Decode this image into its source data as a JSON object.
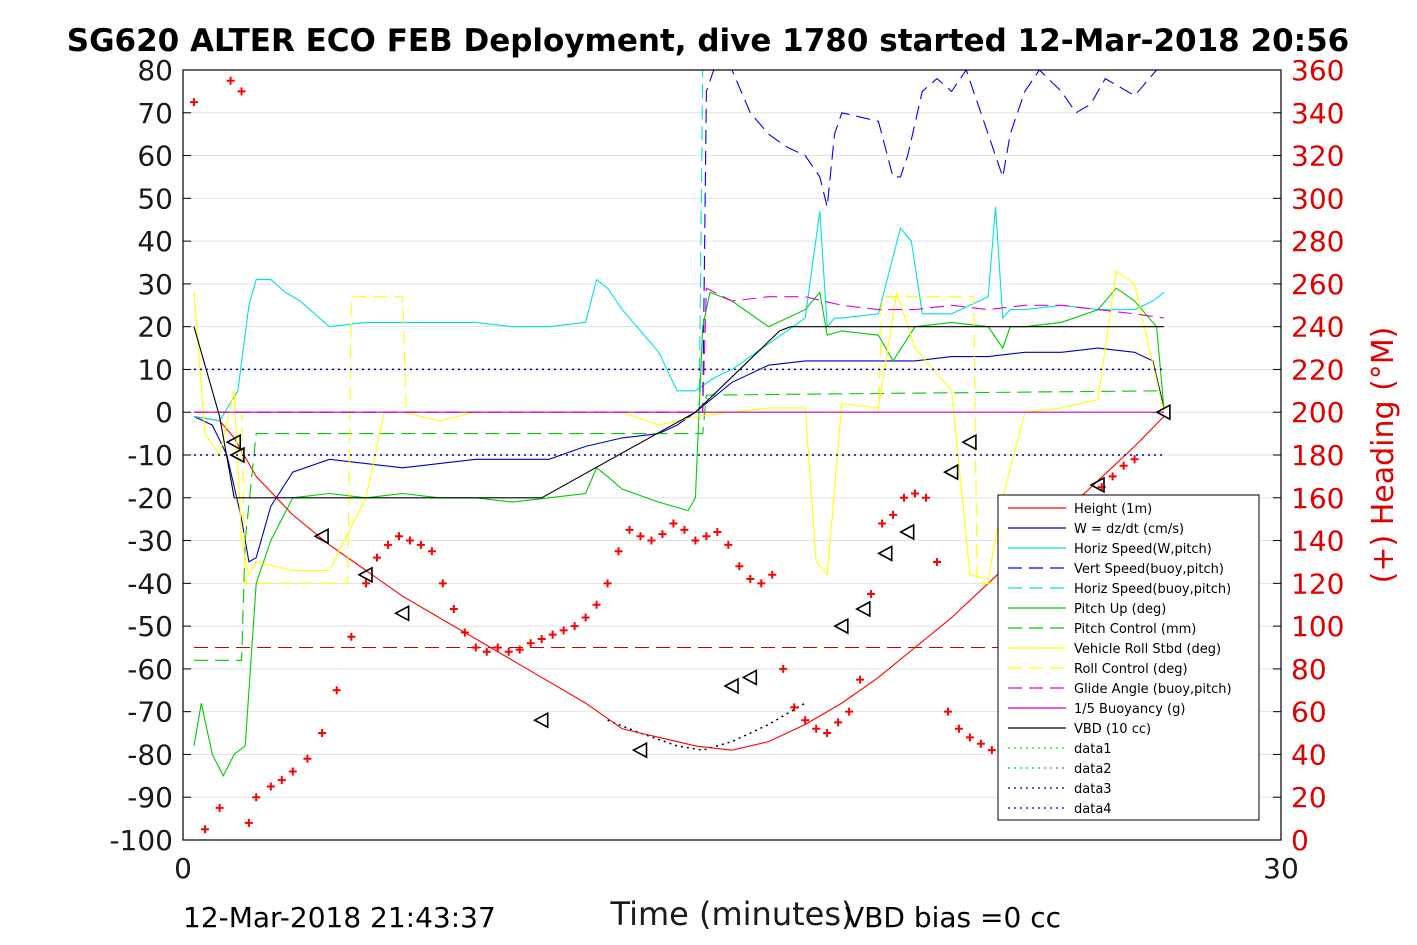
{
  "chart_data": {
    "type": "line",
    "title": "SG620 ALTER ECO FEB Deployment, dive 1780 started 12-Mar-2018 20:56",
    "xlabel": "Time (minutes)",
    "ylabel": "",
    "ylabel_right": "(+) Heading (°M)",
    "xlim": [
      0,
      30
    ],
    "ylim": [
      -100,
      80
    ],
    "ylim_right": [
      0,
      360
    ],
    "x_ticks": [
      "0",
      "30"
    ],
    "y_ticks": [
      "80",
      "70",
      "60",
      "50",
      "40",
      "30",
      "20",
      "10",
      "0",
      "-10",
      "-20",
      "-30",
      "-40",
      "-50",
      "-60",
      "-70",
      "-80",
      "-90",
      "-100"
    ],
    "y_right_ticks": [
      "360",
      "340",
      "320",
      "300",
      "280",
      "260",
      "240",
      "220",
      "200",
      "180",
      "160",
      "140",
      "120",
      "100",
      "80",
      "60",
      "40",
      "20",
      "0"
    ],
    "grid": true,
    "legend_position": "lower-right",
    "footer_left": "12-Mar-2018 21:43:37",
    "footer_right": "VBD bias =0 cc",
    "colors": {
      "red": "#ff0000",
      "blue": "#0000cc",
      "cyan": "#00e0e0",
      "green": "#00cc00",
      "yellow": "#ffff00",
      "magenta": "#cc00cc",
      "black": "#000000",
      "navy": "#000080"
    },
    "series": [
      {
        "name": "Height (1m)",
        "color": "#ff0000",
        "dash": "solid",
        "x": [
          0.3,
          1.0,
          1.4,
          2.0,
          3.0,
          4.0,
          5.0,
          6.0,
          7.0,
          8.0,
          9.0,
          10.0,
          11.0,
          11.5,
          12.0,
          12.5,
          13.0,
          14.0,
          15.0,
          16.0,
          17.0,
          18.0,
          19.0,
          20.0,
          21.0,
          22.0,
          23.0,
          24.0,
          25.0,
          26.0,
          26.8
        ],
        "y": [
          -1,
          -2,
          -6,
          -15,
          -24,
          -31,
          -37,
          -43,
          -48,
          -53,
          -58,
          -63,
          -68,
          -71,
          -74,
          -75,
          -76,
          -78,
          -79,
          -77,
          -73,
          -68,
          -62,
          -55,
          -48,
          -40,
          -32,
          -24,
          -16,
          -8,
          -1
        ]
      },
      {
        "name": "W = dz/dt (cm/s)",
        "color": "#0000cc",
        "dash": "solid",
        "x": [
          0.3,
          0.8,
          1.2,
          1.6,
          1.8,
          2.0,
          2.4,
          3.0,
          4.0,
          5.0,
          6.0,
          7.0,
          8.0,
          9.0,
          10.0,
          11.0,
          12.0,
          13.0,
          13.5,
          14.0,
          15.0,
          16.0,
          17.0,
          18.0,
          19.0,
          20.0,
          21.0,
          22.0,
          23.0,
          24.0,
          25.0,
          26.0,
          26.5,
          26.8
        ],
        "y": [
          -1,
          -3,
          -10,
          -25,
          -35,
          -34,
          -22,
          -14,
          -11,
          -12,
          -13,
          -12,
          -11,
          -11,
          -11,
          -8,
          -6,
          -5,
          -3,
          0,
          7,
          11,
          12,
          12,
          12,
          12,
          13,
          13,
          14,
          14,
          15,
          14,
          12,
          1
        ]
      },
      {
        "name": "Horiz Speed(W,pitch)",
        "color": "#00e0e0",
        "dash": "solid",
        "x": [
          0.3,
          1.0,
          1.5,
          1.8,
          2.0,
          2.4,
          2.8,
          3.2,
          4.0,
          5.0,
          6.0,
          7.0,
          8.0,
          9.0,
          10.0,
          11.0,
          11.3,
          11.6,
          12.0,
          13.0,
          13.5,
          14.0,
          14.5,
          15.0,
          16.0,
          17.0,
          17.4,
          17.6,
          17.8,
          18.0,
          19.0,
          19.6,
          19.9,
          20.2,
          21.0,
          22.0,
          22.2,
          22.4,
          22.6,
          23.0,
          24.0,
          25.0,
          26.0,
          26.5,
          26.8
        ],
        "y": [
          -1,
          -2,
          5,
          25,
          31,
          31,
          28,
          26,
          20,
          21,
          21,
          21,
          21,
          20,
          20,
          21,
          31,
          29,
          24,
          14,
          5,
          5,
          8,
          10,
          16,
          22,
          47,
          20,
          22,
          22,
          23,
          43,
          40,
          23,
          23,
          27,
          48,
          22,
          24,
          24,
          25,
          24,
          24,
          26,
          28
        ]
      },
      {
        "name": "Vert Speed(buoy,pitch)",
        "color": "#0000ff",
        "dash": "dashed",
        "x": [
          0.3,
          14.2,
          14.3,
          14.5,
          15.0,
          15.5,
          16.0,
          16.5,
          17.0,
          17.4,
          17.6,
          17.8,
          18.0,
          19.0,
          19.4,
          19.6,
          19.8,
          20.2,
          20.6,
          21.0,
          21.4,
          21.8,
          22.2,
          22.4,
          22.6,
          23.0,
          23.4,
          24.0,
          24.4,
          24.8,
          25.2,
          25.6,
          26.0,
          26.4,
          26.6
        ],
        "y": [
          0,
          0,
          75,
          80,
          80,
          70,
          65,
          62,
          60,
          55,
          48,
          65,
          70,
          68,
          55,
          55,
          60,
          75,
          78,
          75,
          80,
          70,
          60,
          55,
          65,
          75,
          80,
          75,
          70,
          72,
          78,
          76,
          74,
          78,
          80
        ]
      },
      {
        "name": "Horiz Speed(buoy,pitch)",
        "color": "#00e0e0",
        "dash": "dashed",
        "x": [
          0.3,
          14.1,
          14.2,
          14.3,
          26.7,
          26.8
        ],
        "y": [
          0,
          0,
          80,
          80,
          80,
          80
        ]
      },
      {
        "name": "Pitch Up (deg)",
        "color": "#00cc00",
        "dash": "solid",
        "x": [
          0.3,
          0.5,
          0.8,
          1.1,
          1.4,
          1.7,
          2.0,
          2.4,
          3.0,
          4.0,
          5.0,
          6.0,
          7.0,
          8.0,
          9.0,
          10.0,
          11.0,
          11.3,
          11.6,
          12.0,
          13.0,
          13.8,
          14.0,
          14.2,
          14.4,
          15.0,
          16.0,
          17.0,
          17.4,
          17.6,
          18.0,
          19.0,
          19.4,
          20.0,
          21.0,
          22.0,
          22.4,
          22.6,
          23.0,
          24.0,
          25.0,
          25.5,
          26.0,
          26.6,
          26.8
        ],
        "y": [
          -78,
          -68,
          -80,
          -85,
          -80,
          -78,
          -40,
          -30,
          -20,
          -19,
          -20,
          -19,
          -20,
          -20,
          -21,
          -20,
          -19,
          -13,
          -15,
          -18,
          -21,
          -23,
          -20,
          20,
          28,
          26,
          20,
          24,
          28,
          18,
          19,
          18,
          12,
          20,
          21,
          20,
          15,
          20,
          20,
          21,
          24,
          29,
          26,
          20,
          1
        ]
      },
      {
        "name": "Pitch Control (mm)",
        "color": "#00cc00",
        "dash": "dashed",
        "x": [
          0.3,
          1.6,
          1.7,
          2.0,
          14.2,
          14.3,
          26.8
        ],
        "y": [
          -58,
          -58,
          -30,
          -5,
          -5,
          4,
          5
        ]
      },
      {
        "name": "Vehicle Roll Stbd (deg)",
        "color": "#ffff00",
        "dash": "solid",
        "x": [
          0.3,
          0.6,
          1.0,
          1.4,
          1.6,
          1.8,
          2.0,
          3.0,
          4.0,
          5.0,
          5.5,
          6.0,
          7.0,
          8.0,
          9.0,
          10.0,
          11.0,
          12.0,
          13.0,
          14.0,
          15.0,
          16.0,
          17.0,
          17.3,
          17.6,
          18.0,
          19.0,
          19.5,
          20.0,
          21.0,
          21.5,
          22.0,
          22.4,
          23.0,
          24.0,
          25.0,
          25.5,
          26.0,
          26.8
        ],
        "y": [
          28,
          -5,
          -10,
          5,
          -30,
          -38,
          -35,
          -37,
          -37,
          -20,
          0,
          0,
          -2,
          0,
          0,
          0,
          0,
          0,
          -3,
          -1,
          0,
          1,
          1,
          -35,
          -38,
          2,
          1,
          28,
          15,
          5,
          -38,
          -39,
          -20,
          0,
          1,
          3,
          33,
          30,
          0
        ]
      },
      {
        "name": "Roll Control (deg)",
        "color": "#ffff00",
        "dash": "dashed",
        "x": [
          0.3,
          1.6,
          1.7,
          3.0,
          4.5,
          4.6,
          6.0,
          6.1,
          14.2,
          14.3,
          19.0,
          19.1,
          21.6,
          21.7,
          26.8
        ],
        "y": [
          0,
          0,
          -40,
          -40,
          -40,
          27,
          27,
          0,
          0,
          0,
          0,
          27,
          27,
          -40,
          -40
        ]
      },
      {
        "name": "Glide Angle (buoy,pitch)",
        "color": "#dd00dd",
        "dash": "dashed",
        "x": [
          0.3,
          14.2,
          14.3,
          15.0,
          16.0,
          17.0,
          18.0,
          19.0,
          20.0,
          21.0,
          22.0,
          23.0,
          24.0,
          25.0,
          26.0,
          26.8
        ],
        "y": [
          0,
          0,
          29,
          26,
          27,
          27,
          25,
          24,
          24,
          25,
          24,
          25,
          25,
          24,
          23,
          22
        ]
      },
      {
        "name": "1/5 Buoyancy (g)",
        "color": "#cc00cc",
        "dash": "solid",
        "x": [
          0.3,
          14.2,
          14.3,
          26.8
        ],
        "y": [
          0,
          0,
          0,
          0
        ]
      },
      {
        "name": "VBD (10 cc)",
        "color": "#000000",
        "dash": "solid",
        "x": [
          0.3,
          1.0,
          1.4,
          9.8,
          14.0,
          16.3,
          16.6,
          26.8
        ],
        "y": [
          20,
          -1,
          -20,
          -20,
          0,
          19,
          20,
          20
        ]
      },
      {
        "name": "data1",
        "color": "#00ee00",
        "dash": "dotted",
        "x": [],
        "y": []
      },
      {
        "name": "data2",
        "color": "#00cc00",
        "dash": "dotted",
        "x": [],
        "y": []
      },
      {
        "name": "data3",
        "color": "#000099",
        "dash": "dotted",
        "x": [
          0.3,
          26.8
        ],
        "y": [
          10,
          10
        ]
      },
      {
        "name": "data4",
        "color": "#000099",
        "dash": "dotted",
        "x": [
          0.3,
          26.8
        ],
        "y": [
          -10,
          -10
        ]
      }
    ],
    "extra_lines": [
      {
        "color": "#cc0000",
        "dash": "dashed",
        "axis": "right",
        "x": [
          0.3,
          26.8
        ],
        "y": [
          90,
          90
        ]
      },
      {
        "color": "#000000",
        "dash": "dotted",
        "x": [
          11.6,
          12.5,
          13.5,
          14.2,
          15.0,
          16.0,
          17.0
        ],
        "y": [
          -72,
          -75,
          -78,
          -79,
          -77,
          -73,
          -68
        ]
      }
    ],
    "heading_points": {
      "color": "#ff0000",
      "marker": "+",
      "axis": "right",
      "x": [
        0.3,
        0.6,
        1.0,
        1.3,
        1.6,
        1.8,
        2.0,
        2.4,
        2.7,
        3.0,
        3.4,
        3.8,
        4.2,
        4.6,
        5.0,
        5.3,
        5.6,
        5.9,
        6.2,
        6.5,
        6.8,
        7.1,
        7.4,
        7.7,
        8.0,
        8.3,
        8.6,
        8.9,
        9.2,
        9.5,
        9.8,
        10.1,
        10.4,
        10.7,
        11.0,
        11.3,
        11.6,
        11.9,
        12.2,
        12.5,
        12.8,
        13.1,
        13.4,
        13.7,
        14.0,
        14.3,
        14.6,
        14.9,
        15.2,
        15.5,
        15.8,
        16.1,
        16.4,
        16.7,
        17.0,
        17.3,
        17.6,
        17.9,
        18.2,
        18.5,
        18.8,
        19.1,
        19.4,
        19.7,
        20.0,
        20.3,
        20.6,
        20.9,
        21.2,
        21.5,
        21.8,
        22.1,
        22.4,
        22.7,
        23.0,
        23.3,
        23.6,
        23.9,
        24.2,
        24.5,
        24.8,
        25.1,
        25.4,
        25.7,
        26.0
      ],
      "y": [
        345,
        5,
        15,
        355,
        350,
        8,
        20,
        25,
        28,
        32,
        38,
        50,
        70,
        95,
        120,
        132,
        138,
        142,
        140,
        138,
        135,
        120,
        108,
        97,
        90,
        88,
        90,
        88,
        89,
        92,
        94,
        96,
        98,
        100,
        104,
        110,
        120,
        135,
        145,
        142,
        140,
        143,
        148,
        145,
        140,
        142,
        144,
        138,
        128,
        122,
        120,
        124,
        80,
        62,
        56,
        52,
        50,
        55,
        60,
        75,
        115,
        148,
        152,
        160,
        162,
        160,
        130,
        60,
        52,
        48,
        45,
        42,
        44,
        50,
        60,
        75,
        90,
        100,
        140,
        150,
        158,
        165,
        170,
        175,
        178
      ]
    },
    "depth_markers": {
      "color": "#000000",
      "marker": "triangle",
      "x": [
        1.4,
        1.5,
        3.8,
        5.0,
        6.0,
        9.8,
        12.5,
        15.0,
        15.5,
        18.0,
        18.6,
        19.2,
        19.8,
        21.0,
        21.5,
        24.0,
        25.0,
        26.8
      ],
      "y": [
        -7,
        -10,
        -29,
        -38,
        -47,
        -72,
        -79,
        -64,
        -62,
        -50,
        -46,
        -33,
        -28,
        -14,
        -7,
        -28,
        -17,
        0
      ]
    }
  }
}
